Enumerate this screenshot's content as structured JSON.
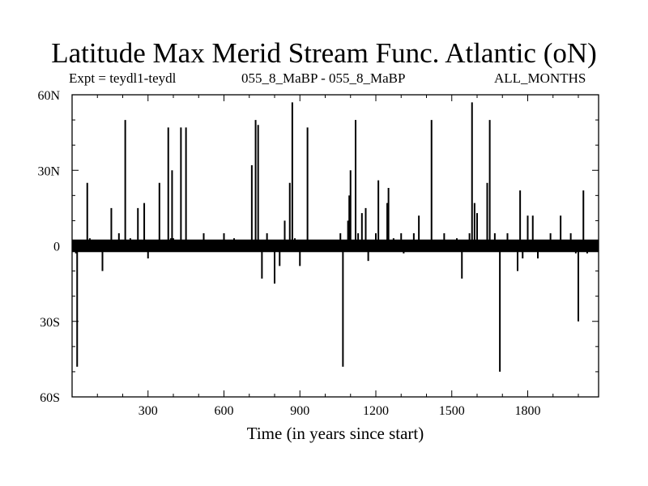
{
  "header": {
    "title": "Latitude Max Merid Stream Func. Atlantic (oN)",
    "left_sub": "Expt = teydl1-teydl",
    "mid_sub": "055_8_MaBP - 055_8_MaBP",
    "right_sub": "ALL_MONTHS"
  },
  "chart_data": {
    "type": "line",
    "title": "Latitude Max Merid Stream Func. Atlantic (oN)",
    "xlabel": "Time (in years since start)",
    "ylabel": "",
    "xlim": [
      0,
      2080
    ],
    "ylim": [
      -60,
      60
    ],
    "x_ticks": [
      300,
      600,
      900,
      1200,
      1500,
      1800
    ],
    "x_tick_labels": [
      "300",
      "600",
      "900",
      "1200",
      "1500",
      "1800"
    ],
    "y_ticks": [
      60,
      30,
      0,
      -30,
      -60
    ],
    "y_tick_labels": [
      "60N",
      "30N",
      "0",
      "30S",
      "60S"
    ],
    "grid": false,
    "noise_band": [
      -2.5,
      2.5
    ],
    "series": [
      {
        "x": [
          15,
          20,
          25,
          60,
          70,
          120,
          155,
          185,
          210,
          230,
          245,
          260,
          285,
          300,
          330,
          345,
          380,
          390,
          395,
          400,
          430,
          450,
          460,
          520,
          600,
          640,
          680,
          710,
          725,
          735,
          750,
          770,
          800,
          820,
          840,
          860,
          870,
          880,
          900,
          930,
          940,
          1060,
          1070,
          1080,
          1090,
          1095,
          1100,
          1120,
          1130,
          1145,
          1160,
          1170,
          1180,
          1200,
          1210,
          1230,
          1245,
          1250,
          1270,
          1300,
          1310,
          1350,
          1370,
          1420,
          1450,
          1470,
          1520,
          1540,
          1570,
          1580,
          1590,
          1600,
          1640,
          1650,
          1660,
          1670,
          1690,
          1700,
          1720,
          1760,
          1770,
          1780,
          1800,
          1820,
          1840,
          1890,
          1930,
          1970,
          1990,
          2000,
          2020,
          2035,
          2040
        ],
        "y": [
          -3,
          -48,
          2,
          25,
          3,
          -10,
          15,
          5,
          50,
          3,
          2,
          15,
          17,
          -5,
          2,
          25,
          47,
          3,
          30,
          3,
          47,
          47,
          2,
          5,
          5,
          3,
          2,
          32,
          50,
          48,
          -13,
          5,
          -15,
          -8,
          10,
          25,
          57,
          3,
          -8,
          47,
          2,
          5,
          -48,
          2,
          10,
          20,
          30,
          50,
          5,
          13,
          15,
          -6,
          2,
          5,
          26,
          2,
          17,
          23,
          3,
          5,
          -3,
          5,
          12,
          50,
          2,
          5,
          3,
          -13,
          5,
          57,
          17,
          13,
          25,
          50,
          2,
          5,
          -50,
          2,
          5,
          -10,
          22,
          -5,
          12,
          12,
          -5,
          5,
          12,
          5,
          -3,
          -30,
          22,
          -3,
          2
        ]
      }
    ]
  }
}
